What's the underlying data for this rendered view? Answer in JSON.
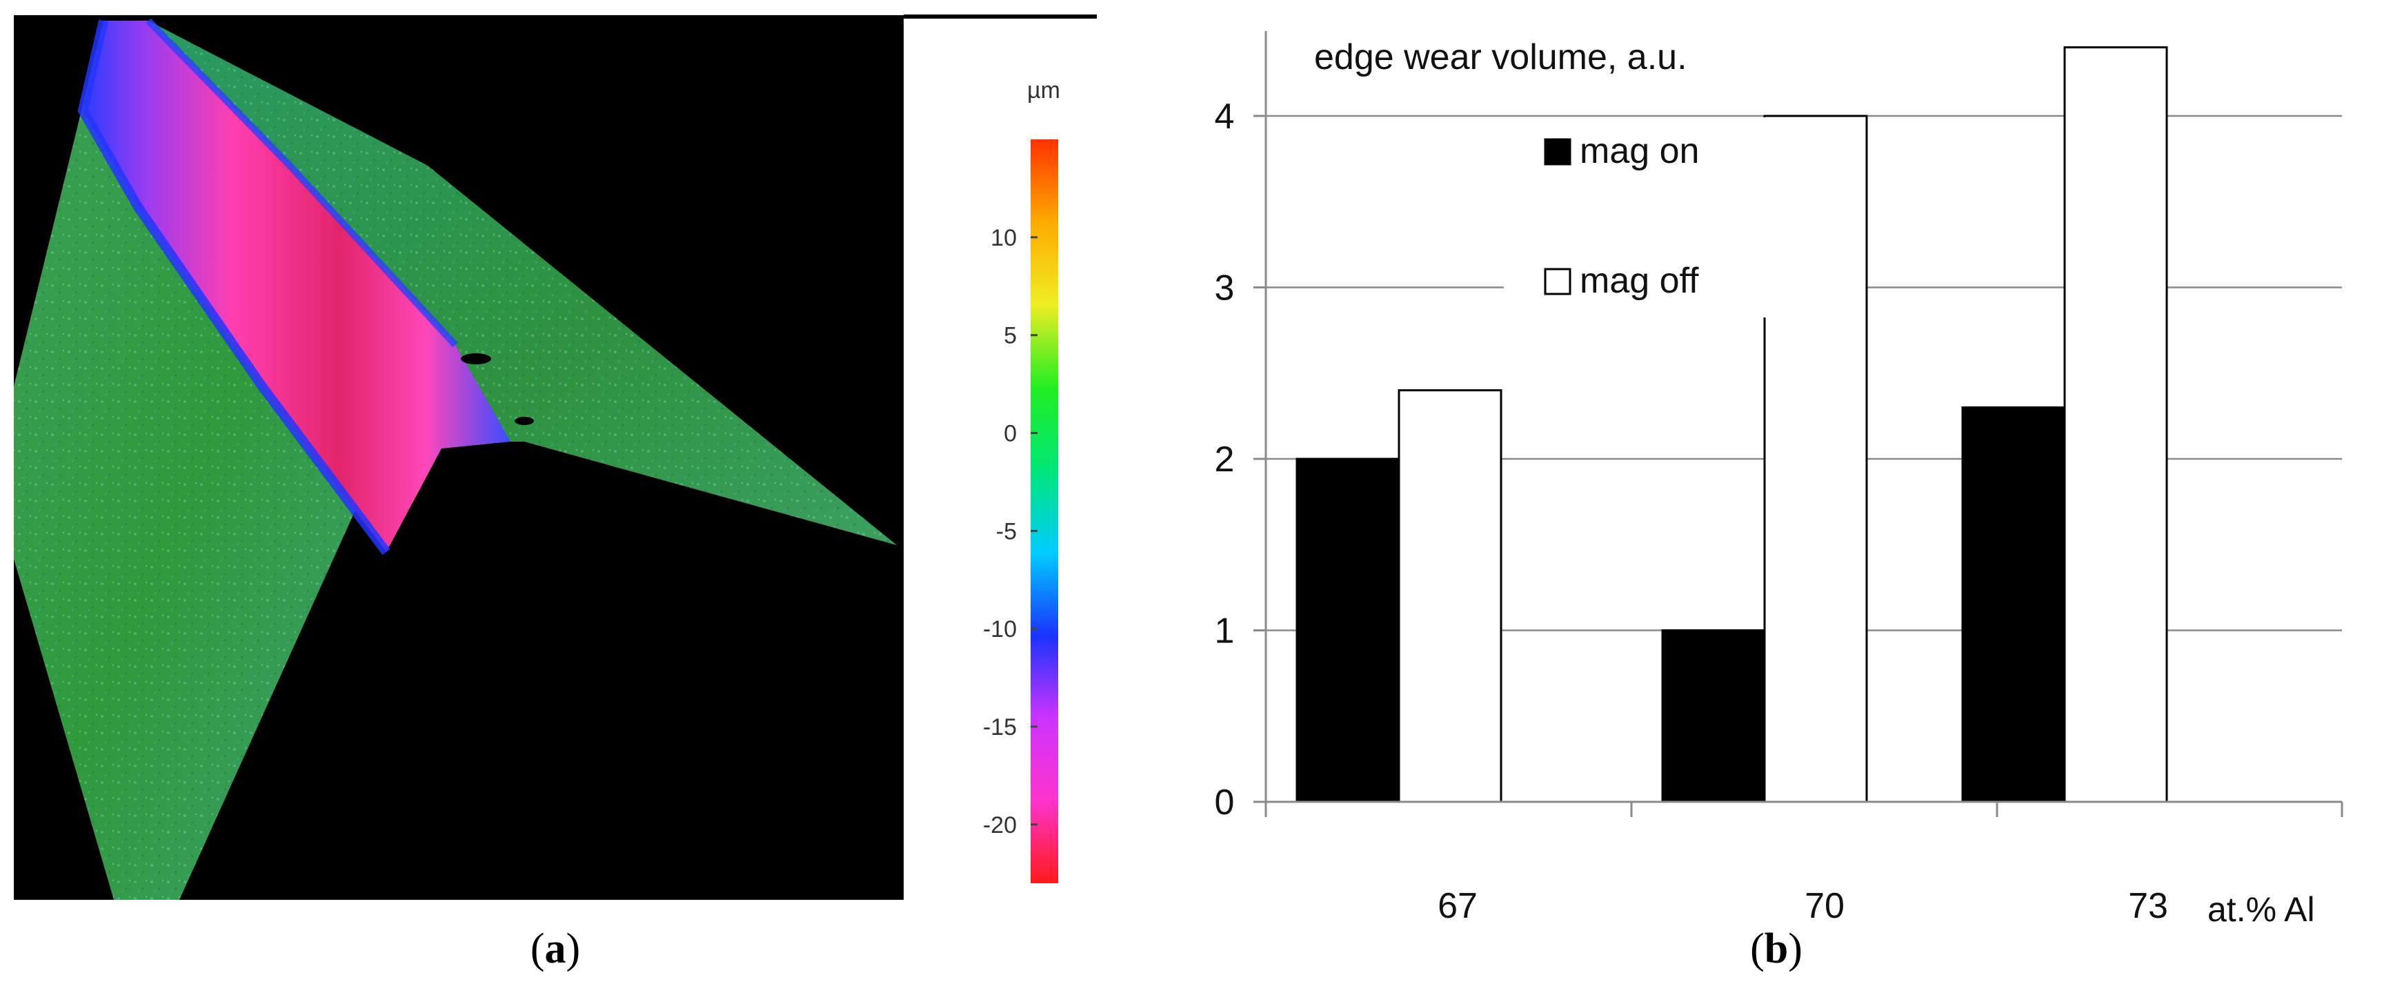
{
  "panel_a": {
    "caption": {
      "open": "(",
      "letter": "a",
      "close": ")"
    },
    "colorbar": {
      "unit": "µm",
      "ticks": [
        "10",
        "5",
        "0",
        "-5",
        "-10",
        "-15",
        "-20"
      ],
      "tick_values": [
        10,
        5,
        0,
        -5,
        -10,
        -15,
        -20
      ],
      "range": [
        -23,
        15
      ],
      "colors": [
        "#ff1a1a",
        "#ff33cc",
        "#cc33ff",
        "#1a33ff",
        "#00ccff",
        "#00e676",
        "#22ee22",
        "#eeee22",
        "#ffaa00",
        "#ff3300"
      ]
    }
  },
  "panel_b": {
    "caption": {
      "open": "(",
      "letter": "b",
      "close": ")"
    }
  },
  "chart_data": [
    {
      "type": "bar",
      "ylabel": "edge wear volume, a.u.",
      "xlabel": "at.% Al",
      "categories": [
        "67",
        "70",
        "73"
      ],
      "series": [
        {
          "name": "mag on",
          "values": [
            2.0,
            1.0,
            2.3
          ],
          "color": "#000000"
        },
        {
          "name": "mag off",
          "values": [
            2.4,
            4.0,
            4.4
          ],
          "color": "#ffffff"
        }
      ],
      "ylim": [
        0,
        4.4
      ],
      "yticks": [
        "0",
        "1",
        "2",
        "3",
        "4"
      ],
      "ytick_values": [
        0,
        1,
        2,
        3,
        4
      ],
      "grid": true,
      "legend_position": "top-center"
    }
  ]
}
